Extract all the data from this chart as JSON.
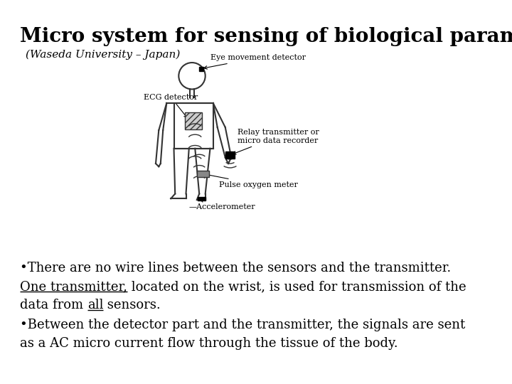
{
  "title": "Micro system for sensing of biological parameters",
  "subtitle": "(Waseda University – Japan)",
  "background_color": "#ffffff",
  "title_fontsize": 20,
  "subtitle_fontsize": 11,
  "body_text_fontsize": 13,
  "bullet1_line1": "•There are no wire lines between the sensors and the transmitter.",
  "bullet1_line2_part1": "One transmitter,",
  "bullet1_line2_part2": " located on the wrist, is used for transmission of the",
  "bullet1_line3_pre": "data from ",
  "bullet1_line3_ul": "all",
  "bullet1_line3_post": " sensors.",
  "bullet2_line1": "•Between the detector part and the transmitter, the signals are sent",
  "bullet2_line2": "as a AC micro current flow through the tissue of the body."
}
